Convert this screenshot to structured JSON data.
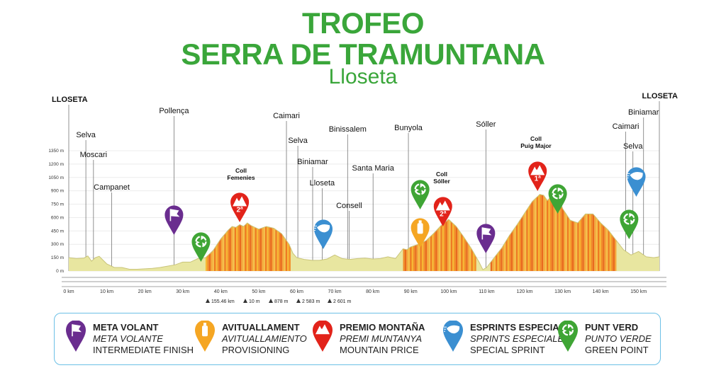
{
  "title": {
    "line1": "TROFEO",
    "line2": "SERRA DE TRAMUNTANA",
    "line3": "Lloseta"
  },
  "colors": {
    "title_green": "#3aa63a",
    "meta_volant": "#6a2d8f",
    "avituallament": "#f5a623",
    "premio": "#e2231a",
    "esprint": "#3b8fd1",
    "punt_verd": "#3fa535",
    "profile_fill": "#e8e6a0",
    "climb_orange": "#f28c28"
  },
  "chart_data": {
    "type": "area",
    "xlabel": "",
    "ylabel": "",
    "x_unit": "km",
    "xlim": [
      0,
      155.46
    ],
    "ylim": [
      0,
      1350
    ],
    "x_ticks": [
      0,
      10,
      20,
      30,
      40,
      50,
      60,
      70,
      80,
      90,
      100,
      110,
      120,
      130,
      140,
      150
    ],
    "x_tick_labels": [
      "0 km",
      "10 km",
      "20 km",
      "30 km",
      "40 km",
      "50 km",
      "60 km",
      "70 km",
      "80 km",
      "90 km",
      "100 km",
      "110 km",
      "120 km",
      "130 km",
      "140 km",
      "150 km"
    ],
    "y_ticks": [
      0,
      150,
      300,
      450,
      600,
      750,
      900,
      1050,
      1200,
      1350
    ],
    "y_tick_labels": [
      "0 m",
      "150 m",
      "300 m",
      "450 m",
      "600 m",
      "750 m",
      "900 m",
      "1050 m",
      "1200 m",
      "1350 m"
    ],
    "profile": {
      "x": [
        0,
        2,
        4,
        5,
        6,
        7,
        8,
        10,
        12,
        14,
        16,
        18,
        20,
        22,
        24,
        26,
        28,
        30,
        32,
        34,
        36,
        38,
        40,
        42,
        43,
        44,
        45,
        46,
        47,
        48,
        50,
        52,
        54,
        56,
        58,
        59,
        60,
        62,
        64,
        66,
        68,
        70,
        72,
        74,
        76,
        78,
        80,
        82,
        84,
        86,
        88,
        89,
        90,
        92,
        94,
        96,
        98,
        100,
        102,
        104,
        106,
        108,
        109,
        110,
        112,
        114,
        116,
        118,
        120,
        122,
        124,
        125,
        126,
        127,
        128,
        129,
        130,
        132,
        134,
        136,
        138,
        140,
        142,
        144,
        146,
        148,
        150,
        152,
        154,
        155.46
      ],
      "y": [
        150,
        140,
        145,
        170,
        110,
        150,
        165,
        80,
        40,
        40,
        20,
        20,
        25,
        30,
        40,
        55,
        70,
        100,
        100,
        140,
        150,
        230,
        360,
        460,
        500,
        490,
        520,
        500,
        540,
        510,
        470,
        500,
        480,
        420,
        300,
        200,
        150,
        130,
        120,
        120,
        135,
        180,
        140,
        130,
        140,
        145,
        135,
        140,
        160,
        140,
        250,
        240,
        270,
        300,
        340,
        420,
        510,
        580,
        500,
        380,
        250,
        100,
        15,
        40,
        150,
        260,
        400,
        520,
        650,
        780,
        860,
        850,
        790,
        840,
        760,
        830,
        700,
        570,
        540,
        640,
        640,
        540,
        460,
        350,
        240,
        180,
        220,
        160,
        150,
        160
      ]
    },
    "climbs": [
      {
        "name": "Coll Femenies",
        "start_km": 36,
        "end_km": 58,
        "category": "2ª"
      },
      {
        "name": "Coll Sóller",
        "start_km": 88,
        "end_km": 107,
        "category": "2ª"
      },
      {
        "name": "Coll Puig Major",
        "start_km": 111,
        "end_km": 144,
        "category": "1ª"
      }
    ],
    "places": [
      {
        "name": "LLOSETA",
        "km": 0,
        "bold": true
      },
      {
        "name": "Selva",
        "km": 4.5,
        "bold": false
      },
      {
        "name": "Moscari",
        "km": 6.5,
        "bold": false
      },
      {
        "name": "Campanet",
        "km": 11.3,
        "bold": false
      },
      {
        "name": "Pollença",
        "km": 27.7,
        "bold": false
      },
      {
        "name": "Caimari",
        "km": 57.3,
        "bold": false
      },
      {
        "name": "Selva",
        "km": 60.3,
        "bold": false
      },
      {
        "name": "Biniamar",
        "km": 64.2,
        "bold": false
      },
      {
        "name": "Lloseta",
        "km": 66.7,
        "bold": false
      },
      {
        "name": "Binissalem",
        "km": 73.4,
        "bold": false
      },
      {
        "name": "Consell",
        "km": 73.8,
        "bold": false
      },
      {
        "name": "Santa Maria",
        "km": 80.1,
        "bold": false
      },
      {
        "name": "Bunyola",
        "km": 89.4,
        "bold": false
      },
      {
        "name": "Sóller",
        "km": 109.8,
        "bold": false
      },
      {
        "name": "Caimari",
        "km": 146.6,
        "bold": false
      },
      {
        "name": "Selva",
        "km": 148.5,
        "bold": false
      },
      {
        "name": "Biniamar",
        "km": 151.3,
        "bold": false
      },
      {
        "name": "LLOSETA",
        "km": 155.46,
        "bold": true
      }
    ],
    "markers": [
      {
        "type": "meta_volant",
        "km": 27.7,
        "label": ""
      },
      {
        "type": "punt_verd",
        "km": 34.8,
        "label": ""
      },
      {
        "type": "premio",
        "km": 45,
        "label": "2ª"
      },
      {
        "type": "esprint",
        "km": 67,
        "label": ""
      },
      {
        "type": "avituallament",
        "km": 92.5,
        "label": ""
      },
      {
        "type": "punt_verd",
        "km": 92.5,
        "label": ""
      },
      {
        "type": "premio",
        "km": 98.5,
        "label": "2ª"
      },
      {
        "type": "meta_volant",
        "km": 109.8,
        "label": ""
      },
      {
        "type": "premio",
        "km": 123.4,
        "label": "1ª"
      },
      {
        "type": "punt_verd",
        "km": 128.7,
        "label": ""
      },
      {
        "type": "punt_verd",
        "km": 147.5,
        "label": ""
      },
      {
        "type": "esprint",
        "km": 149.4,
        "label": ""
      }
    ],
    "summary": [
      {
        "icon": "distance-icon",
        "text": "155.46 km"
      },
      {
        "icon": "min-altitude-icon",
        "text": "10 m"
      },
      {
        "icon": "max-altitude-icon",
        "text": "878 m"
      },
      {
        "icon": "ascent-icon",
        "text": "2 583 m"
      },
      {
        "icon": "descent-icon",
        "text": "2 601 m"
      }
    ]
  },
  "legend": [
    {
      "type": "meta_volant",
      "line1": "META VOLANT",
      "line2": "META VOLANTE",
      "line3": "INTERMEDIATE FINISH"
    },
    {
      "type": "avituallament",
      "line1": "AVITUALLAMENT",
      "line2": "AVITUALLAMIENTO",
      "line3": "PROVISIONING"
    },
    {
      "type": "premio",
      "line1": "PREMIO MONTAÑA",
      "line2": "PREMI MUNTANYA",
      "line3": "MOUNTAIN PRICE"
    },
    {
      "type": "esprint",
      "line1": "ESPRINTS ESPECIALS",
      "line2": "SPRINTS ESPECIALES",
      "line3": "SPECIAL SPRINT"
    },
    {
      "type": "punt_verd",
      "line1": "PUNT VERD",
      "line2": "PUNTO VERDE",
      "line3": "GREEN POINT"
    }
  ]
}
